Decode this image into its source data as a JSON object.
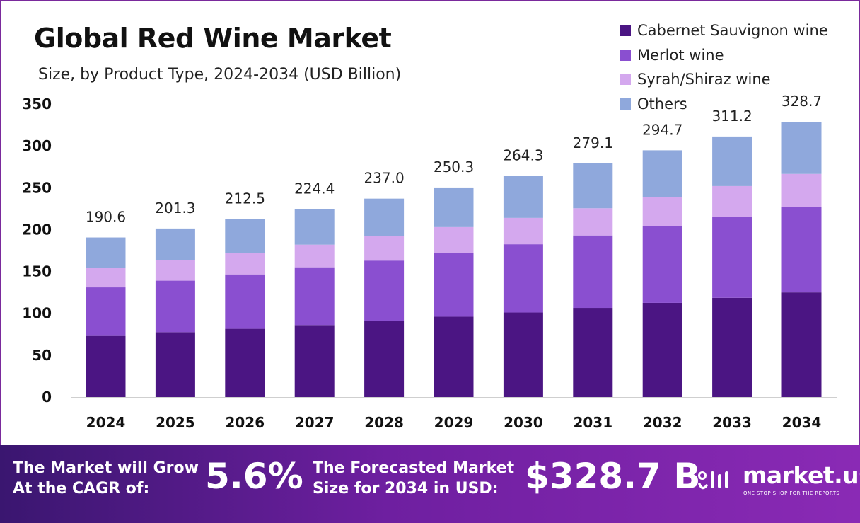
{
  "header": {
    "title": "Global Red Wine Market",
    "subtitle": "Size, by Product Type, 2024-2034 (USD Billion)"
  },
  "legend": [
    {
      "label": "Cabernet Sauvignon wine",
      "color": "#4b1583"
    },
    {
      "label": "Merlot wine",
      "color": "#8a4fd0"
    },
    {
      "label": "Syrah/Shiraz wine",
      "color": "#d4a8ee"
    },
    {
      "label": "Others",
      "color": "#8fa8dc"
    }
  ],
  "chart_data": {
    "type": "bar",
    "stacked": true,
    "title": "Global Red Wine Market",
    "subtitle": "Size, by Product Type, 2024-2034 (USD Billion)",
    "categories": [
      "2024",
      "2025",
      "2026",
      "2027",
      "2028",
      "2029",
      "2030",
      "2031",
      "2032",
      "2033",
      "2034"
    ],
    "series": [
      {
        "name": "Cabernet Sauvignon wine",
        "color": "#4b1583",
        "values": [
          73.0,
          77.5,
          81.5,
          86.0,
          91.0,
          96.0,
          101.0,
          106.5,
          112.5,
          118.5,
          125.0
        ]
      },
      {
        "name": "Merlot wine",
        "color": "#8a4fd0",
        "values": [
          58.0,
          61.5,
          65.0,
          69.0,
          72.0,
          76.0,
          81.5,
          86.5,
          91.5,
          96.5,
          102.0
        ]
      },
      {
        "name": "Syrah/Shiraz wine",
        "color": "#d4a8ee",
        "values": [
          23.0,
          24.5,
          25.5,
          27.0,
          29.0,
          31.0,
          31.5,
          32.5,
          35.0,
          37.0,
          39.5
        ]
      },
      {
        "name": "Others",
        "color": "#8fa8dc",
        "values": [
          36.6,
          37.8,
          40.5,
          42.4,
          45.0,
          47.3,
          50.3,
          53.6,
          55.7,
          59.2,
          62.2
        ]
      }
    ],
    "totals": [
      "190.6",
      "201.3",
      "212.5",
      "224.4",
      "237.0",
      "250.3",
      "264.3",
      "279.1",
      "294.7",
      "311.2",
      "328.7"
    ],
    "ylim": [
      0,
      350
    ],
    "yticks": [
      0,
      50,
      100,
      150,
      200,
      250,
      300,
      350
    ],
    "grid": false,
    "legend_position": "top-right"
  },
  "footer": {
    "cagr_label": "The Market will Grow At the CAGR of:",
    "cagr_line1": "The Market will Grow",
    "cagr_line2": "At the CAGR of:",
    "cagr_value": "5.6%",
    "forecast_line1": "The Forecasted Market",
    "forecast_line2": "Size for 2034 in USD:",
    "forecast_value": "$328.7 B",
    "logo_text": "market.us",
    "logo_tagline": "ONE STOP SHOP FOR THE REPORTS"
  }
}
